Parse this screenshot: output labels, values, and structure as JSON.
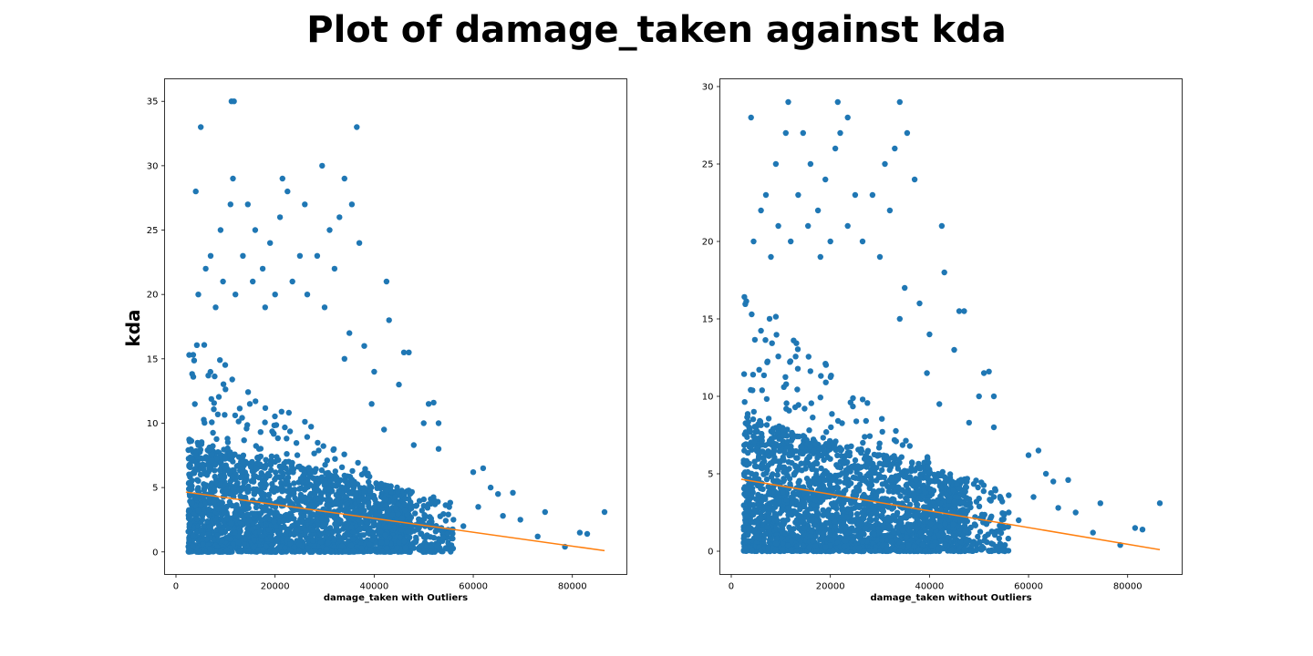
{
  "figure": {
    "suptitle": "Plot of damage_taken against kda"
  },
  "colors": {
    "points": "#1f77b4",
    "fit_line": "#ff7f0e"
  },
  "chart_data": [
    {
      "type": "scatter",
      "title": "",
      "xlabel": "damage_taken with Outliers",
      "ylabel": "kda",
      "xlim": [
        -2300,
        91000
      ],
      "ylim": [
        -1.75,
        36.75
      ],
      "xticks": [
        0,
        20000,
        40000,
        60000,
        80000
      ],
      "yticks": [
        0,
        5,
        10,
        15,
        20,
        25,
        30,
        35
      ],
      "grid": false,
      "fit_line": {
        "x": [
          2000,
          86500
        ],
        "y": [
          4.65,
          0.1
        ]
      },
      "series": [
        {
          "points": [
            [
              11200,
              35
            ],
            [
              11700,
              35
            ],
            [
              5000,
              33
            ],
            [
              36500,
              33
            ],
            [
              4000,
              28
            ],
            [
              22500,
              28
            ],
            [
              29500,
              30
            ],
            [
              11500,
              29
            ],
            [
              21500,
              29
            ],
            [
              34000,
              29
            ],
            [
              11000,
              27
            ],
            [
              14500,
              27
            ],
            [
              26000,
              27
            ],
            [
              35500,
              27
            ],
            [
              9000,
              25
            ],
            [
              16000,
              25
            ],
            [
              21000,
              26
            ],
            [
              31000,
              25
            ],
            [
              33000,
              26
            ],
            [
              37000,
              24
            ],
            [
              19000,
              24
            ],
            [
              7000,
              23
            ],
            [
              13500,
              23
            ],
            [
              25000,
              23
            ],
            [
              28500,
              23
            ],
            [
              6000,
              22
            ],
            [
              17500,
              22
            ],
            [
              32000,
              22
            ],
            [
              9500,
              21
            ],
            [
              15500,
              21
            ],
            [
              23500,
              21
            ],
            [
              42500,
              21
            ],
            [
              4500,
              20
            ],
            [
              12000,
              20
            ],
            [
              20000,
              20
            ],
            [
              26500,
              20
            ],
            [
              30000,
              19
            ],
            [
              8000,
              19
            ],
            [
              18000,
              19
            ],
            [
              35000,
              17
            ],
            [
              43000,
              18
            ],
            [
              38000,
              16
            ],
            [
              40000,
              14
            ],
            [
              46000,
              15.5
            ],
            [
              47000,
              15.5
            ],
            [
              45000,
              13
            ],
            [
              34000,
              15
            ],
            [
              39500,
              11.5
            ],
            [
              51000,
              11.5
            ],
            [
              52000,
              11.6
            ],
            [
              50000,
              10
            ],
            [
              53000,
              10
            ],
            [
              42000,
              9.5
            ],
            [
              48000,
              8.3
            ],
            [
              53000,
              8
            ],
            [
              60000,
              6.2
            ],
            [
              62000,
              6.5
            ],
            [
              65000,
              4.5
            ],
            [
              68000,
              4.6
            ],
            [
              63500,
              5
            ],
            [
              61000,
              3.5
            ],
            [
              66000,
              2.8
            ],
            [
              69500,
              2.5
            ],
            [
              73000,
              1.2
            ],
            [
              74500,
              3.1
            ],
            [
              78500,
              0.4
            ],
            [
              81500,
              1.5
            ],
            [
              83000,
              1.4
            ],
            [
              86500,
              3.1
            ],
            [
              56000,
              2.5
            ],
            [
              58000,
              2
            ],
            [
              55000,
              1.5
            ],
            [
              52500,
              0.5
            ],
            [
              48000,
              0.7
            ]
          ]
        }
      ]
    },
    {
      "type": "scatter",
      "title": "",
      "xlabel": "damage_taken without Outliers",
      "ylabel": "",
      "xlim": [
        -2300,
        91000
      ],
      "ylim": [
        -1.5,
        30.5
      ],
      "xticks": [
        0,
        20000,
        40000,
        60000,
        80000
      ],
      "yticks": [
        0,
        5,
        10,
        15,
        20,
        25,
        30
      ],
      "grid": false,
      "fit_line": {
        "x": [
          2000,
          86500
        ],
        "y": [
          4.65,
          0.1
        ]
      },
      "series": [
        {
          "points": [
            [
              4000,
              28
            ],
            [
              11500,
              29
            ],
            [
              21500,
              29
            ],
            [
              34000,
              29
            ],
            [
              23500,
              28
            ],
            [
              11000,
              27
            ],
            [
              14500,
              27
            ],
            [
              22000,
              27
            ],
            [
              35500,
              27
            ],
            [
              9000,
              25
            ],
            [
              16000,
              25
            ],
            [
              21000,
              26
            ],
            [
              31000,
              25
            ],
            [
              33000,
              26
            ],
            [
              37000,
              24
            ],
            [
              19000,
              24
            ],
            [
              7000,
              23
            ],
            [
              13500,
              23
            ],
            [
              25000,
              23
            ],
            [
              28500,
              23
            ],
            [
              6000,
              22
            ],
            [
              17500,
              22
            ],
            [
              32000,
              22
            ],
            [
              9500,
              21
            ],
            [
              15500,
              21
            ],
            [
              23500,
              21
            ],
            [
              42500,
              21
            ],
            [
              4500,
              20
            ],
            [
              12000,
              20
            ],
            [
              20000,
              20
            ],
            [
              26500,
              20
            ],
            [
              30000,
              19
            ],
            [
              8000,
              19
            ],
            [
              18000,
              19
            ],
            [
              35000,
              17
            ],
            [
              43000,
              18
            ],
            [
              38000,
              16
            ],
            [
              40000,
              14
            ],
            [
              46000,
              15.5
            ],
            [
              47000,
              15.5
            ],
            [
              45000,
              13
            ],
            [
              34000,
              15
            ],
            [
              39500,
              11.5
            ],
            [
              51000,
              11.5
            ],
            [
              52000,
              11.6
            ],
            [
              50000,
              10
            ],
            [
              53000,
              10
            ],
            [
              42000,
              9.5
            ],
            [
              48000,
              8.3
            ],
            [
              53000,
              8
            ],
            [
              60000,
              6.2
            ],
            [
              62000,
              6.5
            ],
            [
              65000,
              4.5
            ],
            [
              68000,
              4.6
            ],
            [
              63500,
              5
            ],
            [
              61000,
              3.5
            ],
            [
              66000,
              2.8
            ],
            [
              69500,
              2.5
            ],
            [
              73000,
              1.2
            ],
            [
              74500,
              3.1
            ],
            [
              78500,
              0.4
            ],
            [
              81500,
              1.5
            ],
            [
              83000,
              1.4
            ],
            [
              86500,
              3.1
            ],
            [
              56000,
              2.5
            ],
            [
              58000,
              2
            ],
            [
              55000,
              1.5
            ],
            [
              52500,
              0.5
            ],
            [
              48000,
              0.7
            ]
          ]
        }
      ]
    }
  ]
}
